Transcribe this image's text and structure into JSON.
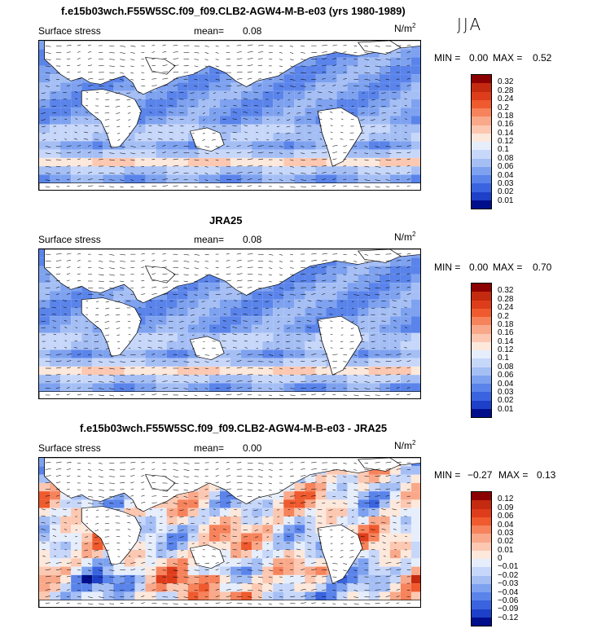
{
  "season": "JJA",
  "units_main": "N/m",
  "units_sup": "2",
  "mean_label": "mean=",
  "variable": "Surface stress",
  "panels": [
    {
      "title": "f.e15b03wch.F55W5SC.f09_f09.CLB2-AGW4-M-B-e03 (yrs 1980-1989)",
      "mean": "0.08",
      "min_label": "MIN =",
      "min": "0.00",
      "max_label": "MAX =",
      "max": "0.52"
    },
    {
      "title": "JRA25",
      "mean": "0.08",
      "min_label": "MIN =",
      "min": "0.00",
      "max_label": "MAX =",
      "max": "0.70"
    },
    {
      "title": "f.e15b03wch.F55W5SC.f09_f09.CLB2-AGW4-M-B-e03 - JRA25",
      "mean": "0.00",
      "min_label": "MIN =",
      "min": "−0.27",
      "max_label": "MAX =",
      "max": "0.13"
    }
  ],
  "colorbars": {
    "absolute": {
      "levels": [
        "0.32",
        "0.28",
        "0.24",
        "0.2",
        "0.18",
        "0.16",
        "0.14",
        "0.12",
        "0.1",
        "0.08",
        "0.06",
        "0.04",
        "0.03",
        "0.02",
        "0.01"
      ],
      "colors": [
        "#8b0000",
        "#c42a10",
        "#de3d1c",
        "#ef5a2e",
        "#f6835c",
        "#f9a98a",
        "#fcc8b2",
        "#fde8dc",
        "#e6eefc",
        "#c7d7fa",
        "#a5bff5",
        "#7ea2ef",
        "#5a84ea",
        "#3a63df",
        "#1e40c8",
        "#000e8c"
      ]
    },
    "difference": {
      "levels": [
        "0.12",
        "0.09",
        "0.06",
        "0.04",
        "0.03",
        "0.02",
        "0.01",
        "0",
        "−0.01",
        "−0.02",
        "−0.03",
        "−0.04",
        "−0.06",
        "−0.09",
        "−0.12"
      ],
      "colors": [
        "#8b0000",
        "#c42a10",
        "#de3d1c",
        "#ef5a2e",
        "#f6835c",
        "#f9a98a",
        "#fcc8b2",
        "#fde8dc",
        "#e6eefc",
        "#c7d7fa",
        "#a5bff5",
        "#7ea2ef",
        "#5a84ea",
        "#3a63df",
        "#1e40c8",
        "#000e8c"
      ]
    }
  }
}
